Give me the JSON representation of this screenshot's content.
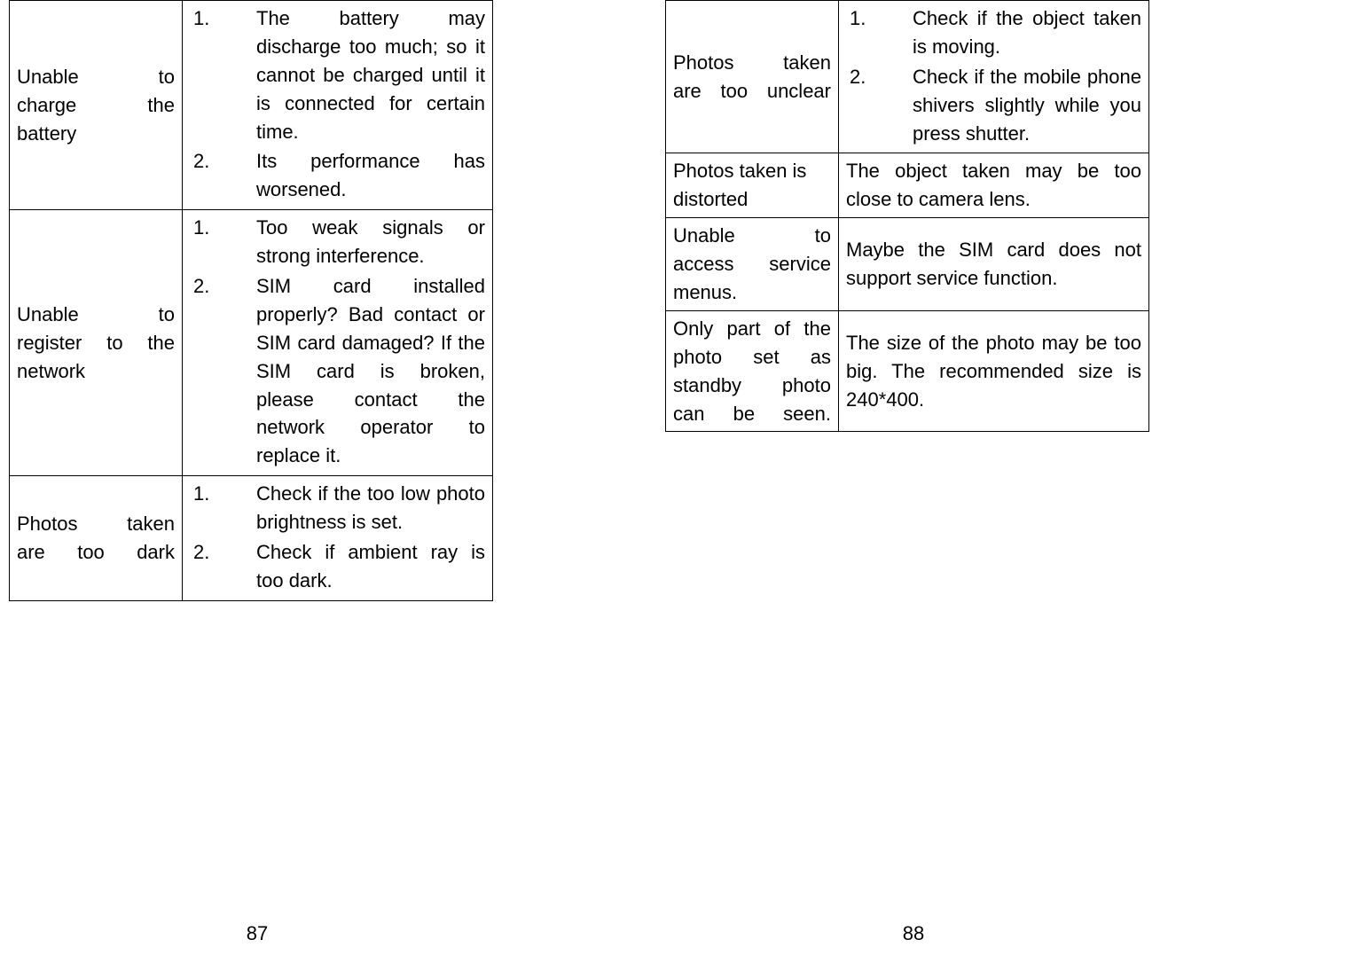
{
  "pages": {
    "left": {
      "number": "87",
      "rows": [
        {
          "problem": "Unable to charge the battery",
          "justify_lines": [
            "Unable to",
            "charge the"
          ],
          "last_line": "battery",
          "items": [
            "The battery may discharge too much; so it cannot be charged until it is connected for certain time.",
            "  Its performance has worsened."
          ]
        },
        {
          "problem": "Unable to register to the network",
          "justify_lines": [
            "Unable to",
            "register to the"
          ],
          "last_line": "network",
          "items": [
            "Too weak signals or strong interference.",
            "SIM card installed properly? Bad contact or SIM card damaged? If the SIM card is broken, please contact the network operator to replace it."
          ]
        },
        {
          "problem": "Photos taken are too dark",
          "justify_lines": [
            "Photos taken"
          ],
          "last_line": "are too dark",
          "items": [
            "Check if the too low photo brightness is set.",
            "Check if ambient ray is too dark."
          ]
        }
      ]
    },
    "right": {
      "number": "88",
      "rows": [
        {
          "problem": "Photos taken are too unclear",
          "justify_lines": [
            "Photos taken"
          ],
          "last_line": "are too unclear",
          "items": [
            "Check if the object taken is moving.",
            "Check if the mobile phone shivers slightly while you press shutter."
          ]
        },
        {
          "problem": "Photos taken is distorted",
          "justify_lines": [],
          "last_line": "Photos taken is distorted",
          "plain": "The object taken may be too close to camera lens."
        },
        {
          "problem": "Unable to access service menus.",
          "justify_lines": [
            "Unable to",
            "access service"
          ],
          "last_line": "menus.",
          "plain": "Maybe the SIM card does not support service function."
        },
        {
          "problem": "Only part of the photo set as standby photo can be seen.",
          "justify_lines": [
            "Only part of the",
            "photo set as",
            "standby photo"
          ],
          "last_line": "can be seen.",
          "plain": "The size of the photo may be too big. The recommended size is 240*400."
        }
      ]
    }
  },
  "style": {
    "font_family": "Arial",
    "font_size_pt": 16,
    "text_color": "#000000",
    "background_color": "#ffffff",
    "border_color": "#000000"
  }
}
